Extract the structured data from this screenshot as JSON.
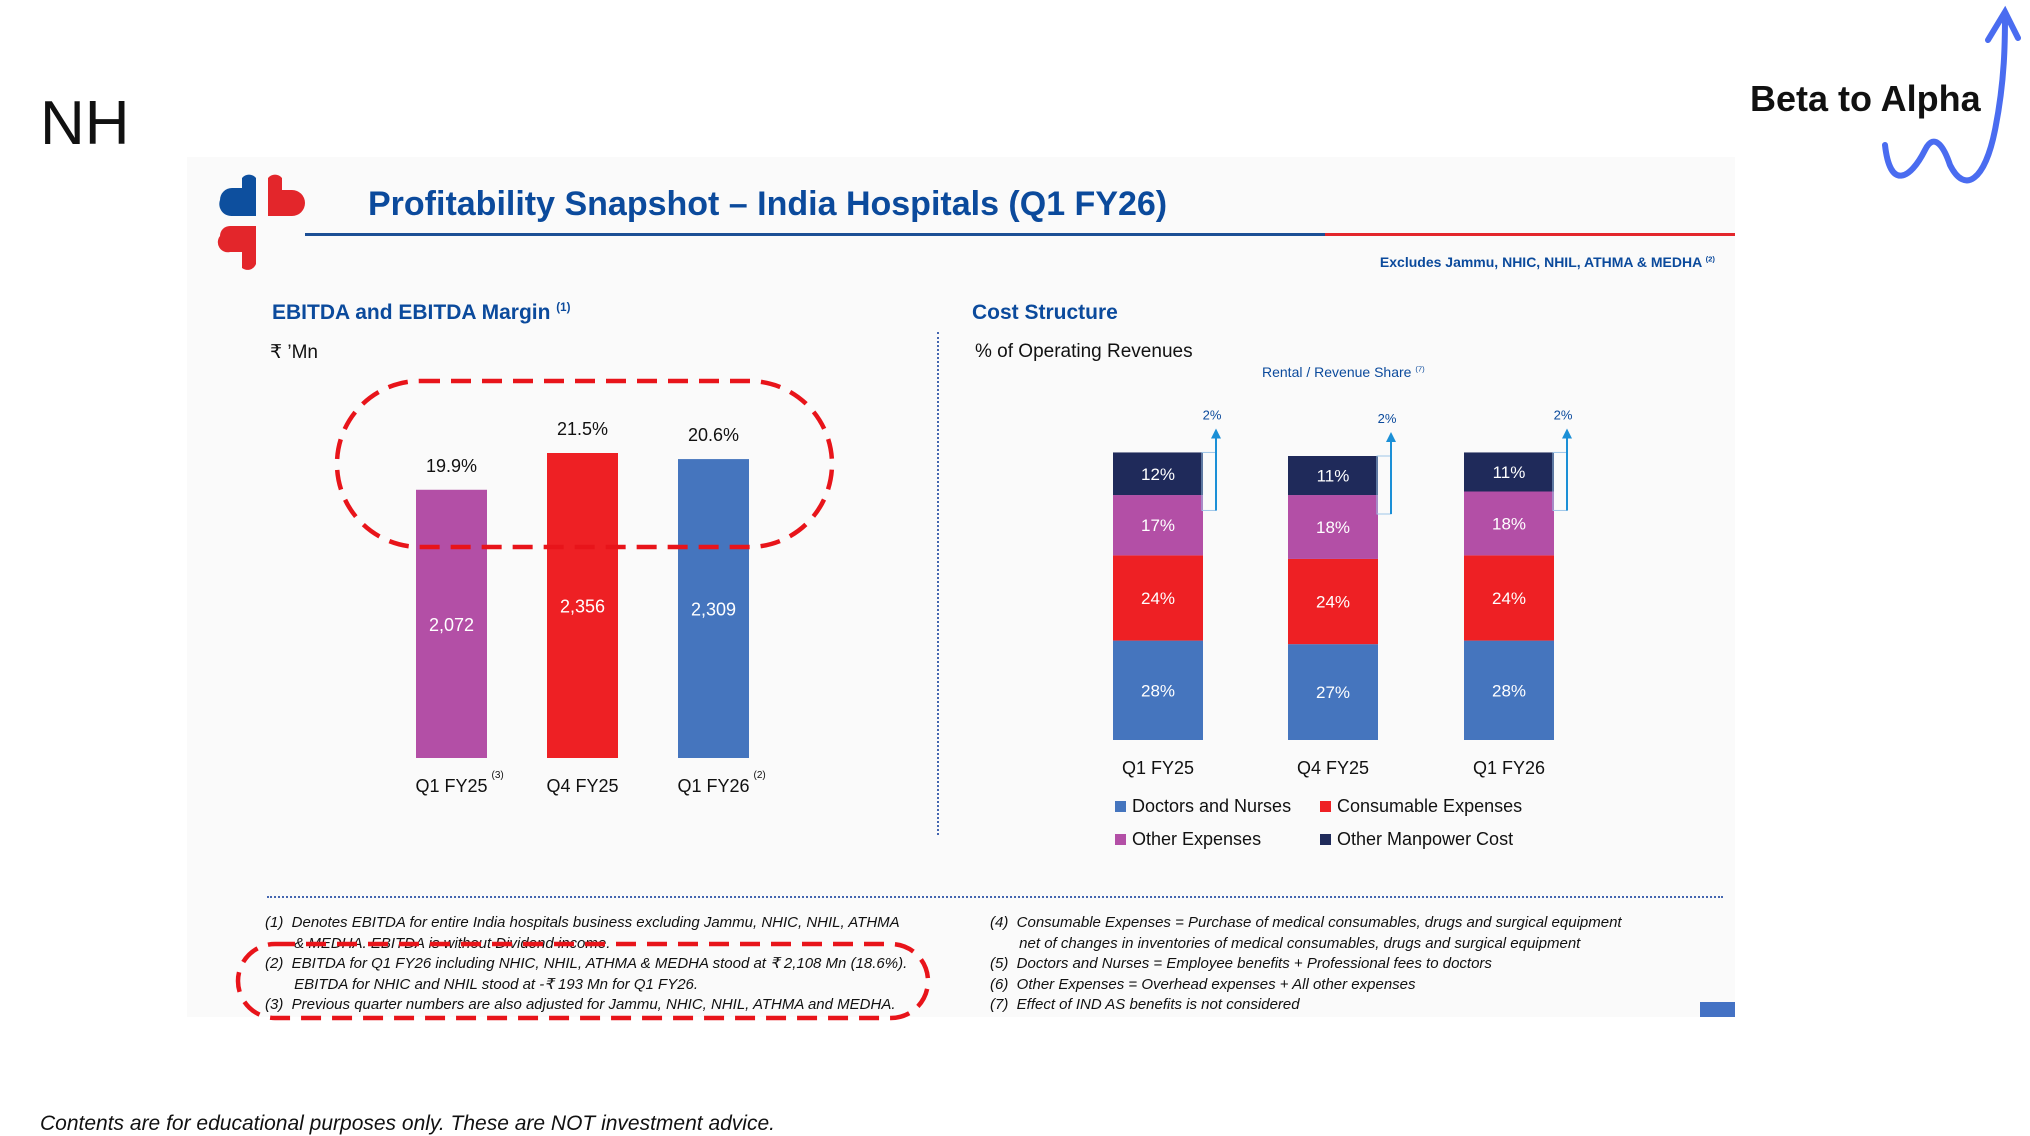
{
  "brand": "NH",
  "tagline": "Beta to Alpha",
  "slide": {
    "title": "Profitability Snapshot – India Hospitals (Q1 FY26)",
    "excludes_note": "Excludes Jammu, NHIC, NHIL, ATHMA & MEDHA",
    "excludes_sup": "(2)",
    "ebitda": {
      "heading": "EBITDA and EBITDA Margin",
      "heading_sup": "(1)",
      "unit": "₹ ’Mn"
    },
    "cost": {
      "heading": "Cost Structure",
      "subheading": "% of Operating Revenues",
      "rental_label": "Rental / Revenue Share",
      "rental_sup": "(7)"
    },
    "footnotes_left": [
      "(1)  Denotes EBITDA for entire India hospitals business excluding Jammu, NHIC, NHIL, ATHMA\n       & MEDHA. EBITDA is without Dividend income.",
      "(2)  EBITDA for Q1 FY26 including NHIC, NHIL, ATHMA & MEDHA stood at ₹ 2,108 Mn (18.6%).\n       EBITDA for NHIC and NHIL stood at -₹ 193 Mn for Q1 FY26.",
      "(3)  Previous quarter numbers are also adjusted for Jammu, NHIC, NHIL, ATHMA and MEDHA."
    ],
    "footnotes_right": [
      "(4)  Consumable Expenses = Purchase of medical consumables, drugs and surgical equipment\n       net of changes in inventories of medical consumables, drugs and surgical equipment",
      "(5)  Doctors and Nurses = Employee benefits + Professional fees to doctors",
      "(6)  Other Expenses = Overhead expenses + All other expenses",
      "(7)  Effect of IND AS benefits is not considered"
    ]
  },
  "disclaimer": "Contents are for educational purposes only. These are NOT investment advice.",
  "chart_data": [
    {
      "type": "bar",
      "title": "EBITDA and EBITDA Margin",
      "ylabel": "₹ ’Mn",
      "categories": [
        "Q1 FY25",
        "Q4 FY25",
        "Q1 FY26"
      ],
      "category_sups": [
        "(3)",
        "",
        "(2)"
      ],
      "values": [
        2072,
        2356,
        2309
      ],
      "value_labels": [
        "2,072",
        "2,356",
        "2,309"
      ],
      "margins": [
        "19.9%",
        "21.5%",
        "20.6%"
      ],
      "colors": [
        "#b34fa6",
        "#ee2024",
        "#4575be"
      ]
    },
    {
      "type": "bar",
      "stacked": true,
      "title": "Cost Structure",
      "ylabel": "% of Operating Revenues",
      "categories": [
        "Q1 FY25",
        "Q4 FY25",
        "Q1 FY26"
      ],
      "series": [
        {
          "name": "Doctors and Nurses",
          "color": "#4575be",
          "values": [
            28,
            27,
            28
          ]
        },
        {
          "name": "Consumable Expenses",
          "color": "#ee2024",
          "values": [
            24,
            24,
            24
          ]
        },
        {
          "name": "Other Expenses",
          "color": "#b34fa6",
          "values": [
            17,
            18,
            18
          ]
        },
        {
          "name": "Other Manpower Cost",
          "color": "#1f2a5a",
          "values": [
            12,
            11,
            11
          ]
        }
      ],
      "rental_share": [
        2,
        2,
        2
      ],
      "rental_labels": [
        "2%",
        "2%",
        "2%"
      ]
    }
  ]
}
